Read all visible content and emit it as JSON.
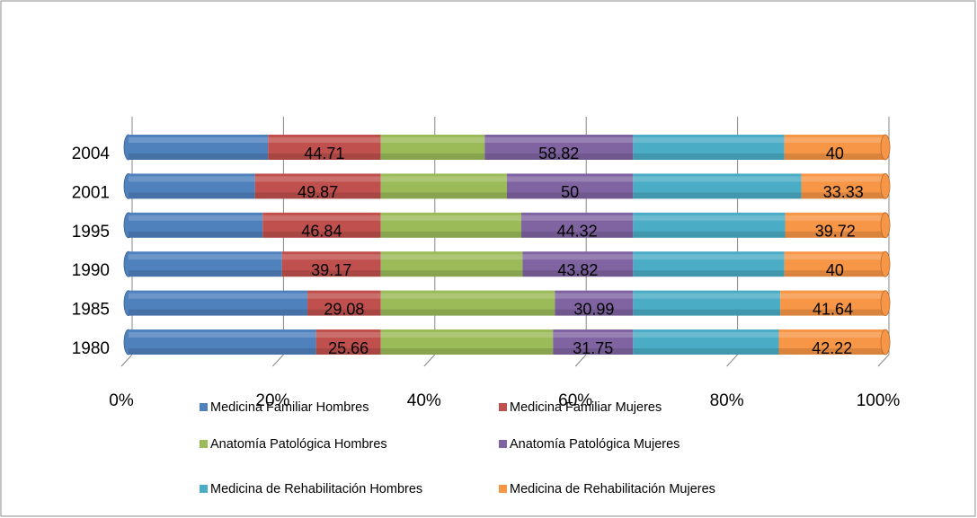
{
  "chart_data": {
    "type": "bar3d_stacked100",
    "categories": [
      "1980",
      "1985",
      "1990",
      "1995",
      "2001",
      "2004"
    ],
    "series": [
      {
        "name": "Medicina Familiar Hombres",
        "color": "#4f81bd",
        "values": [
          74.34,
          70.92,
          60.83,
          53.16,
          50.13,
          55.29
        ],
        "data_labels": false
      },
      {
        "name": "Medicina Familiar Mujeres",
        "color": "#c0504d",
        "values": [
          25.66,
          29.08,
          39.17,
          46.84,
          49.87,
          44.71
        ],
        "data_labels": true
      },
      {
        "name": "Anatomía Patológica Hombres",
        "color": "#9bbb59",
        "values": [
          68.25,
          69.01,
          56.18,
          55.68,
          50,
          41.18
        ],
        "data_labels": false
      },
      {
        "name": "Anatomía Patológica Mujeres",
        "color": "#8064a2",
        "values": [
          31.75,
          30.99,
          43.82,
          44.32,
          50,
          58.82
        ],
        "data_labels": true
      },
      {
        "name": "Medicina de Rehabilitación Hombres",
        "color": "#4bacc6",
        "values": [
          57.78,
          58.36,
          60,
          60.28,
          66.67,
          60
        ],
        "data_labels": false
      },
      {
        "name": "Medicina de Rehabilitación Mujeres",
        "color": "#f79646",
        "values": [
          42.22,
          41.64,
          40,
          39.72,
          33.33,
          40
        ],
        "data_labels": true
      }
    ],
    "xlim": [
      0,
      100
    ],
    "xticks": [
      {
        "value": 0,
        "label": "0%"
      },
      {
        "value": 20,
        "label": "20%"
      },
      {
        "value": 40,
        "label": "40%"
      },
      {
        "value": 60,
        "label": "60%"
      },
      {
        "value": 80,
        "label": "80%"
      },
      {
        "value": 100,
        "label": "100%"
      }
    ],
    "grid": true,
    "legend": "bottom"
  }
}
